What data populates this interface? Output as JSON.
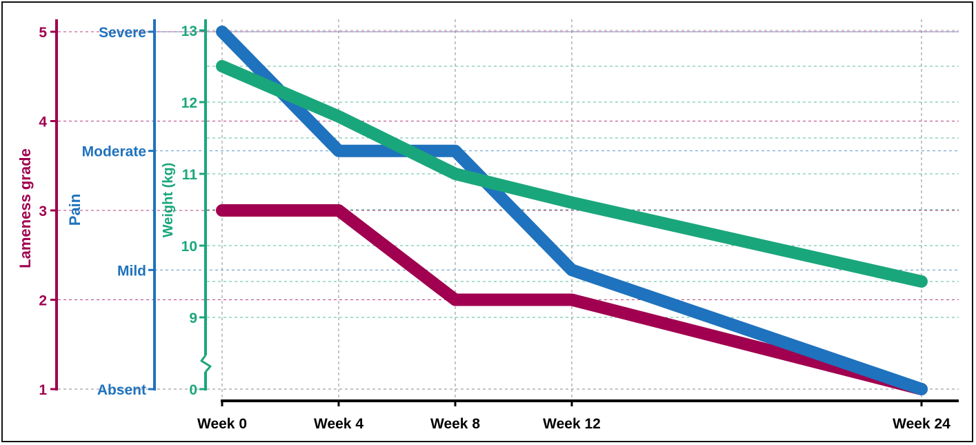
{
  "colors": {
    "lameness": "#a0004f",
    "pain": "#1f72bd",
    "weight": "#1aa67b",
    "grid": "#8a8a8a",
    "axis": "#000000"
  },
  "chart_data": {
    "type": "line",
    "x": [
      0,
      4,
      8,
      12,
      24
    ],
    "x_tick_labels": [
      "Week 0",
      "Week 4",
      "Week 8",
      "Week 12",
      "Week 24"
    ],
    "axes": {
      "lameness": {
        "label": "Lameness grade",
        "ticks": [
          1,
          2,
          3,
          4,
          5
        ],
        "tick_labels": [
          "1",
          "2",
          "3",
          "4",
          "5"
        ],
        "range": [
          1,
          5
        ]
      },
      "pain": {
        "label": "Pain",
        "ticks": [
          0,
          1,
          2,
          3
        ],
        "tick_labels": [
          "Absent",
          "Mild",
          "Moderate",
          "Severe"
        ],
        "range": [
          0,
          3
        ]
      },
      "weight": {
        "label": "Weight (kg)",
        "ticks": [
          9,
          10,
          11,
          12,
          13
        ],
        "tick_labels": [
          "9",
          "10",
          "11",
          "12",
          "13"
        ],
        "zero_label": "0",
        "range": [
          8,
          13
        ],
        "axis_break": true
      }
    },
    "series": [
      {
        "key": "lameness",
        "values": [
          3,
          3,
          2,
          2,
          1
        ]
      },
      {
        "key": "pain",
        "values": [
          3,
          2,
          2,
          1,
          0
        ]
      },
      {
        "key": "weight",
        "values": [
          12.5,
          11.8,
          11.0,
          10.6,
          9.5
        ]
      }
    ],
    "grid": true
  }
}
